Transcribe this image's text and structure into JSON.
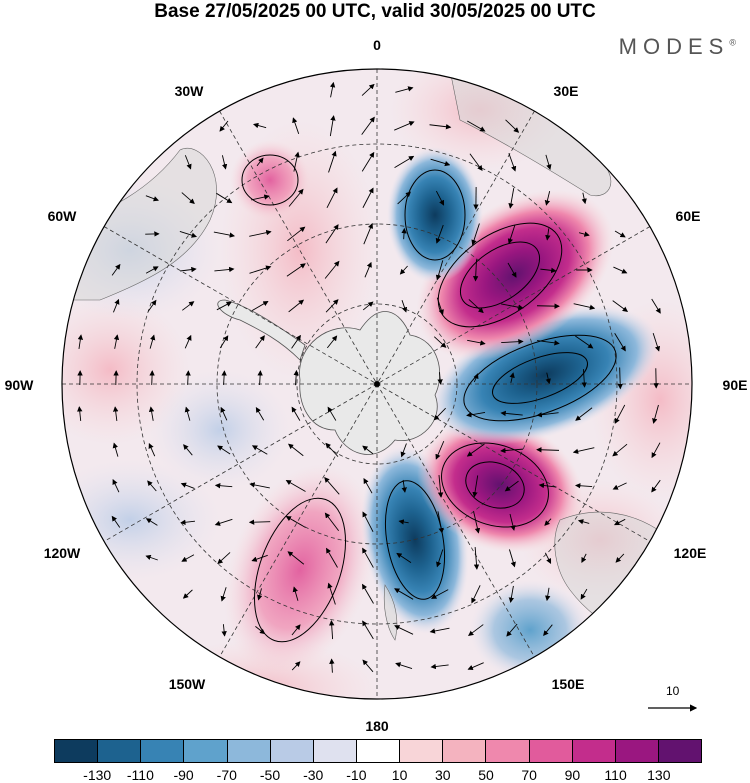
{
  "header": {
    "title": "Base 27/05/2025 00 UTC, valid 30/05/2025 00 UTC",
    "brand": "MODES",
    "brand_mark": "®"
  },
  "map": {
    "projection": "south-polar-stereographic",
    "lon_labels": [
      "0",
      "30E",
      "60E",
      "90E",
      "120E",
      "150E",
      "180",
      "150W",
      "120W",
      "90W",
      "60W",
      "30W"
    ],
    "reference_vector": {
      "label": "10"
    }
  },
  "colorbar": {
    "colors": [
      "#0d3b5e",
      "#1d628f",
      "#3783b4",
      "#5fa2cc",
      "#8db8db",
      "#b9cbe6",
      "#dfe1ef",
      "#ffffff",
      "#f8d5d8",
      "#f4b3bf",
      "#ef88ad",
      "#e15b9c",
      "#c32d8c",
      "#9a1780",
      "#62126f"
    ],
    "ticks": [
      "-130",
      "-110",
      "-90",
      "-70",
      "-50",
      "-30",
      "-10",
      "10",
      "30",
      "50",
      "70",
      "90",
      "110",
      "130"
    ]
  }
}
